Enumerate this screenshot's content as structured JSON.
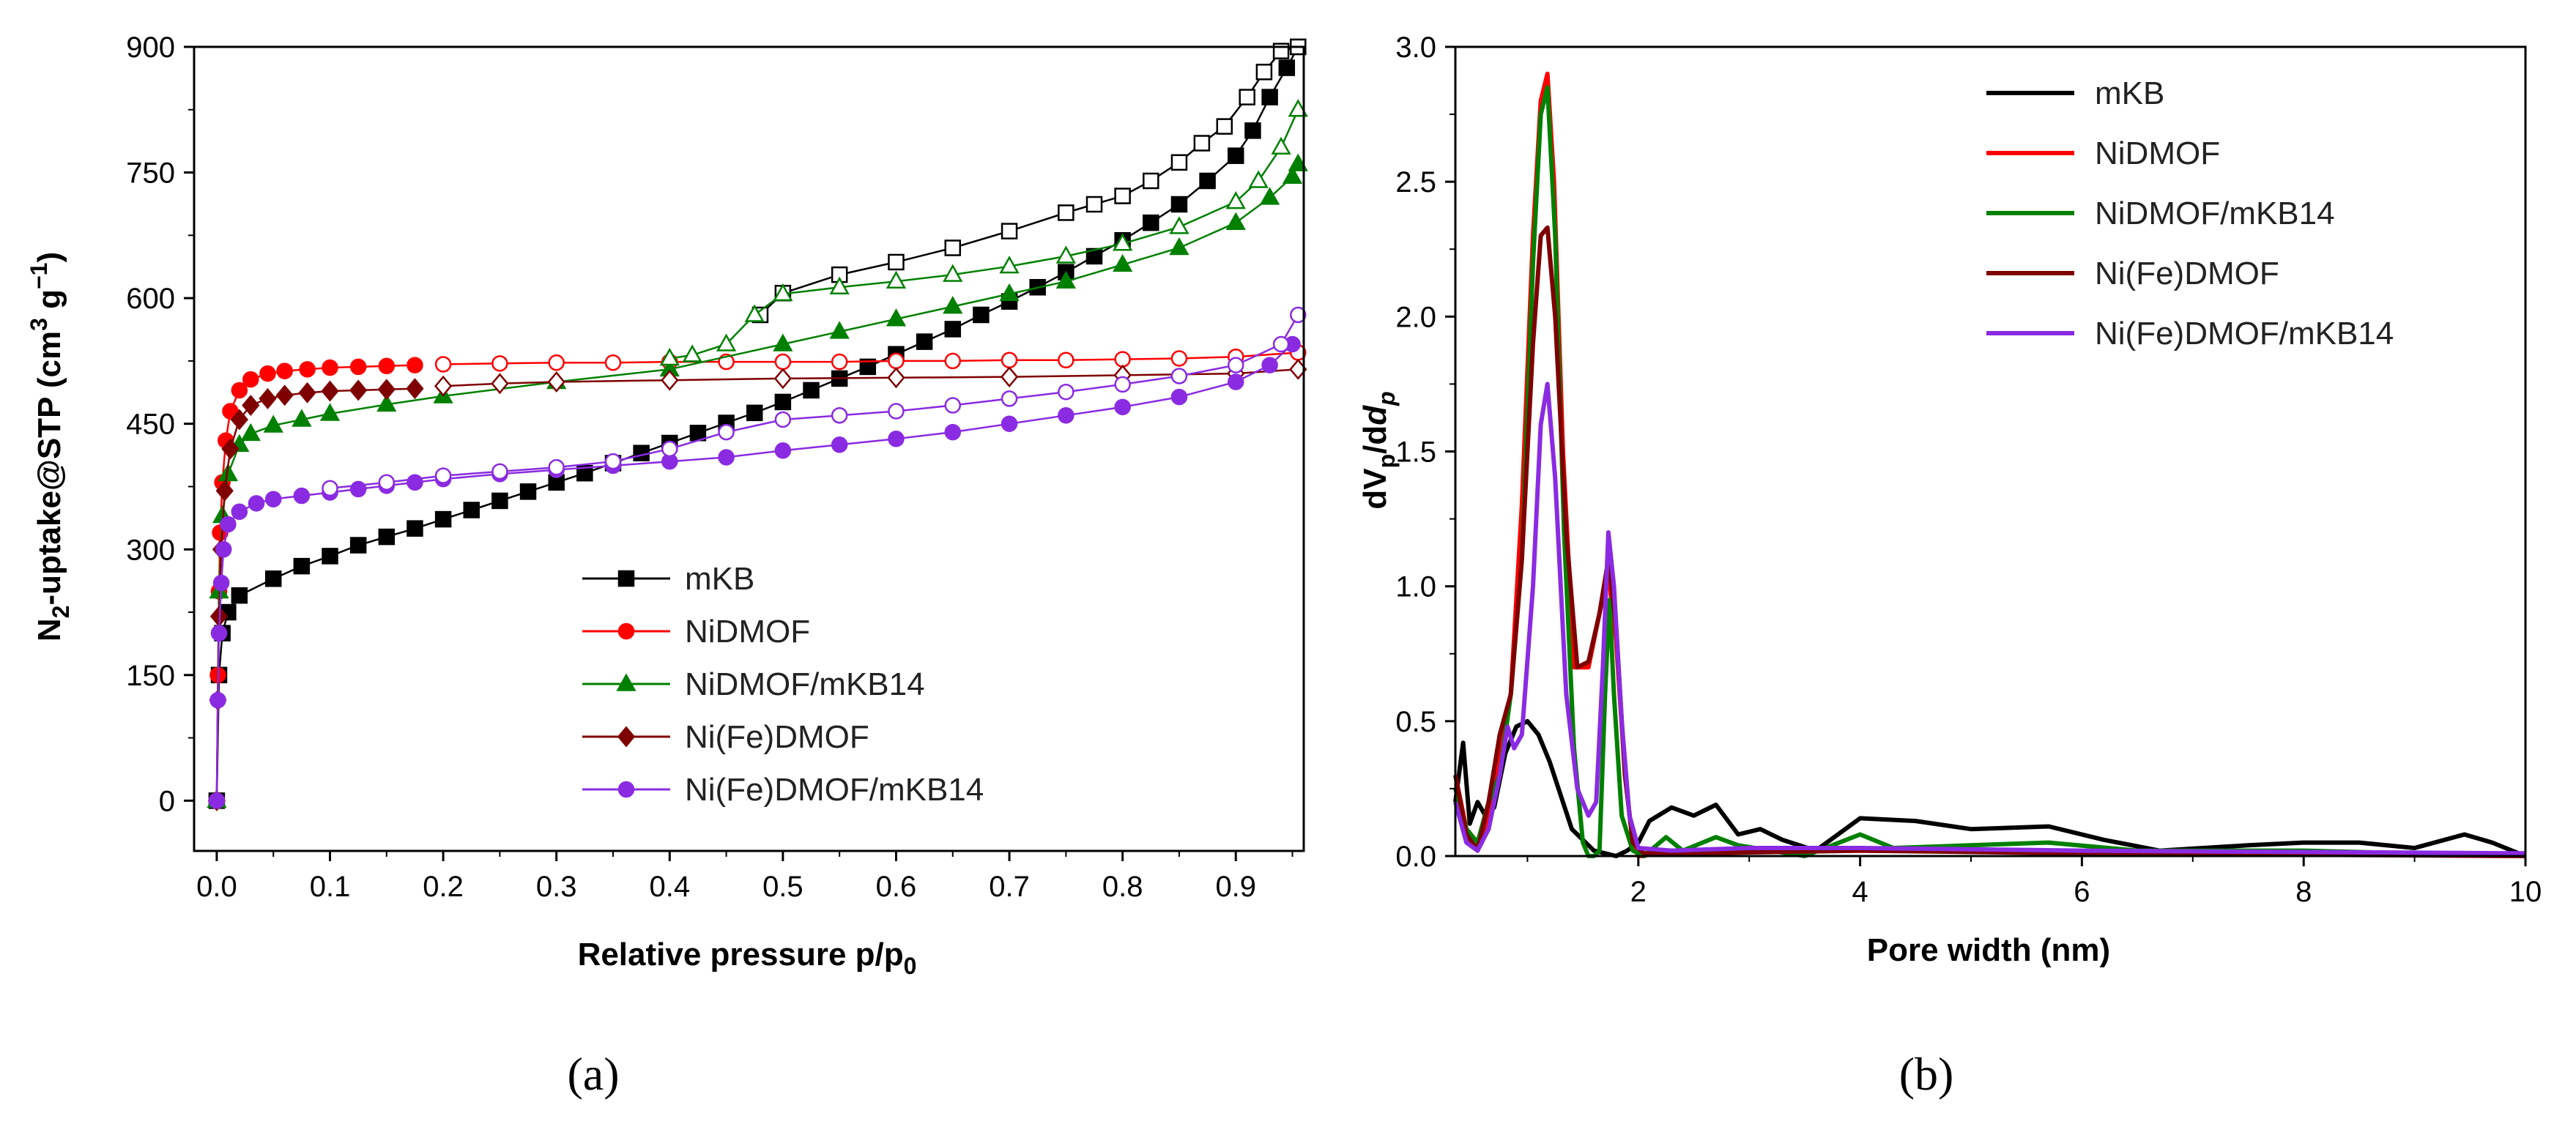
{
  "chart_data": [
    {
      "type": "scatter",
      "panel_label": "(a)",
      "xlabel": "Relative pressure p/p",
      "xlabel_sub": "0",
      "ylabel_parts": [
        "N",
        "2",
        "-uptake@STP (cm",
        "3",
        " g",
        "−1",
        ")"
      ],
      "xlim": [
        -0.02,
        0.96
      ],
      "ylim": [
        -60,
        900
      ],
      "xticks": [
        "0.0",
        "0.1",
        "0.2",
        "0.3",
        "0.4",
        "0.5",
        "0.6",
        "0.7",
        "0.8",
        "0.9"
      ],
      "yticks": [
        "0",
        "150",
        "300",
        "450",
        "600",
        "750",
        "900"
      ],
      "legend_position": "lower-right",
      "series": [
        {
          "name": "mKB",
          "color": "#000000",
          "marker": "square",
          "adsorption": {
            "x": [
              0.0,
              0.002,
              0.005,
              0.01,
              0.02,
              0.05,
              0.075,
              0.1,
              0.125,
              0.15,
              0.175,
              0.2,
              0.225,
              0.25,
              0.275,
              0.3,
              0.325,
              0.35,
              0.375,
              0.4,
              0.425,
              0.45,
              0.475,
              0.5,
              0.525,
              0.55,
              0.575,
              0.6,
              0.625,
              0.65,
              0.675,
              0.7,
              0.725,
              0.75,
              0.775,
              0.8,
              0.825,
              0.85,
              0.875,
              0.9,
              0.915,
              0.93,
              0.945,
              0.955
            ],
            "y": [
              0,
              150,
              200,
              225,
              245,
              265,
              280,
              292,
              305,
              315,
              325,
              336,
              347,
              358,
              369,
              380,
              391,
              403,
              415,
              427,
              439,
              451,
              463,
              476,
              490,
              504,
              518,
              533,
              548,
              563,
              580,
              596,
              613,
              631,
              650,
              669,
              690,
              712,
              740,
              770,
              800,
              840,
              875,
              900
            ]
          },
          "desorption": {
            "x": [
              0.955,
              0.94,
              0.925,
              0.91,
              0.89,
              0.87,
              0.85,
              0.825,
              0.8,
              0.775,
              0.75,
              0.7,
              0.65,
              0.6,
              0.55,
              0.5,
              0.48
            ],
            "y": [
              900,
              895,
              870,
              840,
              805,
              785,
              762,
              740,
              722,
              712,
              702,
              680,
              660,
              643,
              628,
              606,
              580
            ]
          }
        },
        {
          "name": "NiDMOF",
          "color": "#ff0000",
          "marker": "circle",
          "adsorption": {
            "x": [
              0.0,
              0.001,
              0.002,
              0.003,
              0.005,
              0.008,
              0.012,
              0.02,
              0.03,
              0.045,
              0.06,
              0.08,
              0.1,
              0.125,
              0.15,
              0.175
            ],
            "y": [
              0,
              150,
              250,
              320,
              380,
              430,
              465,
              490,
              503,
              510,
              513,
              515,
              517,
              518,
              519,
              520
            ]
          },
          "desorption": {
            "x": [
              0.955,
              0.9,
              0.85,
              0.8,
              0.75,
              0.7,
              0.65,
              0.6,
              0.55,
              0.5,
              0.45,
              0.4,
              0.35,
              0.3,
              0.25,
              0.2
            ],
            "y": [
              535,
              530,
              528,
              527,
              526,
              526,
              525,
              525,
              524,
              524,
              524,
              524,
              523,
              523,
              522,
              521
            ]
          }
        },
        {
          "name": "NiDMOF/mKB14",
          "color": "#008000",
          "marker": "triangle",
          "adsorption": {
            "x": [
              0.0,
              0.002,
              0.005,
              0.01,
              0.02,
              0.03,
              0.05,
              0.075,
              0.1,
              0.15,
              0.2,
              0.3,
              0.4,
              0.5,
              0.55,
              0.6,
              0.65,
              0.7,
              0.75,
              0.8,
              0.85,
              0.9,
              0.93,
              0.95,
              0.955
            ],
            "y": [
              0,
              250,
              340,
              390,
              425,
              438,
              448,
              455,
              462,
              473,
              483,
              500,
              515,
              545,
              560,
              575,
              590,
              605,
              620,
              640,
              660,
              690,
              720,
              745,
              760
            ]
          },
          "desorption": {
            "x": [
              0.955,
              0.94,
              0.92,
              0.9,
              0.85,
              0.8,
              0.75,
              0.7,
              0.65,
              0.6,
              0.55,
              0.5,
              0.475,
              0.45,
              0.42,
              0.4
            ],
            "y": [
              825,
              780,
              740,
              715,
              685,
              665,
              650,
              638,
              628,
              620,
              613,
              605,
              580,
              545,
              532,
              528
            ]
          }
        },
        {
          "name": "Ni(Fe)DMOF",
          "color": "#7f0000",
          "marker": "diamond",
          "adsorption": {
            "x": [
              0.0,
              0.001,
              0.002,
              0.004,
              0.007,
              0.012,
              0.02,
              0.03,
              0.045,
              0.06,
              0.08,
              0.1,
              0.125,
              0.15,
              0.175
            ],
            "y": [
              0,
              120,
              220,
              300,
              370,
              420,
              455,
              472,
              480,
              484,
              487,
              489,
              490,
              491,
              492
            ]
          },
          "desorption": {
            "x": [
              0.955,
              0.9,
              0.8,
              0.7,
              0.6,
              0.5,
              0.4,
              0.3,
              0.25,
              0.2
            ],
            "y": [
              515,
              510,
              508,
              506,
              505,
              504,
              502,
              500,
              498,
              495
            ]
          }
        },
        {
          "name": "Ni(Fe)DMOF/mKB14",
          "color": "#8a2be2",
          "marker": "circle",
          "adsorption": {
            "x": [
              0.0,
              0.001,
              0.002,
              0.004,
              0.006,
              0.01,
              0.02,
              0.035,
              0.05,
              0.075,
              0.1,
              0.125,
              0.15,
              0.175,
              0.2,
              0.25,
              0.3,
              0.35,
              0.4,
              0.45,
              0.5,
              0.55,
              0.6,
              0.65,
              0.7,
              0.75,
              0.8,
              0.85,
              0.9,
              0.93,
              0.95
            ],
            "y": [
              0,
              120,
              200,
              260,
              300,
              330,
              345,
              355,
              360,
              364,
              368,
              372,
              376,
              380,
              384,
              390,
              395,
              400,
              405,
              410,
              418,
              425,
              432,
              440,
              450,
              460,
              470,
              482,
              500,
              520,
              545
            ]
          },
          "desorption": {
            "x": [
              0.955,
              0.94,
              0.9,
              0.85,
              0.8,
              0.75,
              0.7,
              0.65,
              0.6,
              0.55,
              0.5,
              0.45,
              0.4,
              0.35,
              0.3,
              0.25,
              0.2,
              0.15,
              0.1
            ],
            "y": [
              580,
              545,
              520,
              507,
              497,
              488,
              480,
              472,
              465,
              460,
              455,
              440,
              420,
              405,
              398,
              393,
              388,
              380,
              373
            ]
          }
        }
      ]
    },
    {
      "type": "line",
      "panel_label": "(b)",
      "xlabel": "Pore width (nm)",
      "ylabel": "dV/dd",
      "ylabel_v_sub": "p",
      "ylabel_d_sub": "p",
      "xlim": [
        0.35,
        10
      ],
      "ylim": [
        0,
        3.0
      ],
      "xticks": [
        "2",
        "4",
        "6",
        "8",
        "10"
      ],
      "yticks": [
        "0.0",
        "0.5",
        "1.0",
        "1.5",
        "2.0",
        "2.5",
        "3.0"
      ],
      "legend_position": "top-right",
      "series": [
        {
          "name": "mKB",
          "color": "#000000",
          "x": [
            0.35,
            0.42,
            0.48,
            0.55,
            0.62,
            0.7,
            0.8,
            0.9,
            1.0,
            1.1,
            1.2,
            1.4,
            1.6,
            1.8,
            1.9,
            2.0,
            2.1,
            2.3,
            2.5,
            2.7,
            2.9,
            3.1,
            3.3,
            3.6,
            4.0,
            4.5,
            5.0,
            5.7,
            6.2,
            6.7,
            7.5,
            8.0,
            8.5,
            9.0,
            9.45,
            9.7,
            10.0
          ],
          "y": [
            0.2,
            0.42,
            0.12,
            0.2,
            0.15,
            0.18,
            0.38,
            0.48,
            0.5,
            0.45,
            0.35,
            0.1,
            0.02,
            0.0,
            0.02,
            0.05,
            0.13,
            0.18,
            0.15,
            0.19,
            0.08,
            0.1,
            0.06,
            0.02,
            0.14,
            0.13,
            0.1,
            0.11,
            0.06,
            0.02,
            0.04,
            0.05,
            0.05,
            0.03,
            0.08,
            0.05,
            0.0
          ]
        },
        {
          "name": "NiDMOF",
          "color": "#ff0000",
          "x": [
            0.35,
            0.45,
            0.55,
            0.65,
            0.75,
            0.85,
            0.95,
            1.05,
            1.12,
            1.18,
            1.24,
            1.32,
            1.42,
            1.55,
            1.65,
            1.73,
            1.8,
            1.88,
            1.95,
            2.0,
            2.05,
            2.2,
            3.0,
            5.0,
            7.0,
            10.0
          ],
          "y": [
            0.3,
            0.1,
            0.02,
            0.15,
            0.4,
            0.6,
            1.3,
            2.3,
            2.8,
            2.9,
            2.5,
            1.5,
            0.7,
            0.7,
            0.9,
            1.05,
            0.8,
            0.3,
            0.05,
            0.0,
            0.0,
            0.02,
            0.02,
            0.02,
            0.01,
            0.0
          ]
        },
        {
          "name": "NiDMOF/mKB14",
          "color": "#008000",
          "x": [
            0.35,
            0.45,
            0.55,
            0.65,
            0.75,
            0.85,
            0.95,
            1.05,
            1.12,
            1.18,
            1.25,
            1.33,
            1.42,
            1.5,
            1.55,
            1.6,
            1.65,
            1.7,
            1.74,
            1.78,
            1.85,
            1.95,
            2.05,
            2.25,
            2.4,
            2.7,
            2.9,
            3.5,
            4.0,
            4.3,
            5.0,
            5.7,
            6.5,
            8.0,
            10.0
          ],
          "y": [
            0.25,
            0.1,
            0.05,
            0.2,
            0.3,
            0.6,
            1.1,
            2.2,
            2.75,
            2.85,
            2.3,
            1.2,
            0.4,
            0.05,
            0.0,
            0.0,
            0.02,
            0.6,
            0.95,
            0.6,
            0.15,
            0.02,
            0.0,
            0.07,
            0.02,
            0.07,
            0.04,
            0.0,
            0.08,
            0.03,
            0.04,
            0.05,
            0.02,
            0.02,
            0.0
          ]
        },
        {
          "name": "Ni(Fe)DMOF",
          "color": "#7f0000",
          "x": [
            0.35,
            0.45,
            0.55,
            0.65,
            0.75,
            0.85,
            0.95,
            1.05,
            1.12,
            1.18,
            1.25,
            1.35,
            1.45,
            1.55,
            1.65,
            1.73,
            1.8,
            1.88,
            1.95,
            2.05,
            2.5,
            4.0,
            6.0,
            10.0
          ],
          "y": [
            0.3,
            0.08,
            0.02,
            0.2,
            0.45,
            0.6,
            1.1,
            1.9,
            2.3,
            2.33,
            2.0,
            1.2,
            0.7,
            0.72,
            0.9,
            1.1,
            0.85,
            0.3,
            0.05,
            0.01,
            0.01,
            0.02,
            0.01,
            0.0
          ]
        },
        {
          "name": "Ni(Fe)DMOF/mKB14",
          "color": "#8a2be2",
          "x": [
            0.35,
            0.45,
            0.55,
            0.65,
            0.75,
            0.82,
            0.88,
            0.95,
            1.05,
            1.12,
            1.18,
            1.25,
            1.35,
            1.45,
            1.55,
            1.62,
            1.68,
            1.73,
            1.78,
            1.85,
            1.92,
            2.0,
            2.3,
            3.0,
            4.0,
            6.0,
            10.0
          ],
          "y": [
            0.2,
            0.05,
            0.02,
            0.1,
            0.3,
            0.48,
            0.4,
            0.45,
            1.0,
            1.6,
            1.75,
            1.4,
            0.6,
            0.25,
            0.15,
            0.2,
            0.7,
            1.2,
            1.0,
            0.5,
            0.15,
            0.03,
            0.02,
            0.03,
            0.03,
            0.02,
            0.01
          ]
        }
      ]
    }
  ]
}
